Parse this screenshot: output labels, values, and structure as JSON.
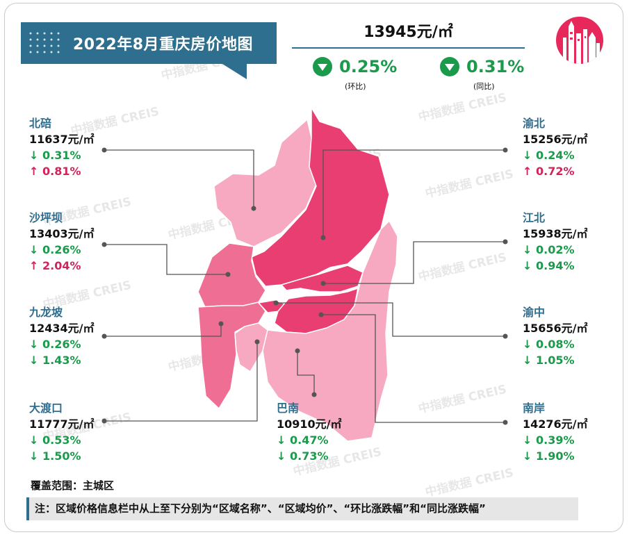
{
  "header": {
    "title": "2022年8月重庆房价地图",
    "avg_price": "13945元/㎡",
    "mom_value": "0.25%",
    "mom_label": "(环比)",
    "yoy_value": "0.31%",
    "yoy_label": "(同比)"
  },
  "chart_data": {
    "type": "table",
    "columns": [
      "区域名称",
      "区域均价",
      "环比涨跌幅",
      "同比涨跌幅"
    ],
    "rows": [
      {
        "name": "北碚",
        "price": "11637元/㎡",
        "mom": "↓ 0.31%",
        "yoy": "↑ 0.81%",
        "mom_dir": "down",
        "yoy_dir": "up",
        "price_value": 11637,
        "mom_value": -0.31,
        "yoy_value": 0.81
      },
      {
        "name": "渝北",
        "price": "15256元/㎡",
        "mom": "↓ 0.24%",
        "yoy": "↑ 0.72%",
        "mom_dir": "down",
        "yoy_dir": "up",
        "price_value": 15256,
        "mom_value": -0.24,
        "yoy_value": 0.72
      },
      {
        "name": "沙坪坝",
        "price": "13403元/㎡",
        "mom": "↓ 0.26%",
        "yoy": "↑ 2.04%",
        "mom_dir": "down",
        "yoy_dir": "up",
        "price_value": 13403,
        "mom_value": -0.26,
        "yoy_value": 2.04
      },
      {
        "name": "江北",
        "price": "15938元/㎡",
        "mom": "↓ 0.02%",
        "yoy": "↓ 0.94%",
        "mom_dir": "down",
        "yoy_dir": "down",
        "price_value": 15938,
        "mom_value": -0.02,
        "yoy_value": -0.94
      },
      {
        "name": "九龙坡",
        "price": "12434元/㎡",
        "mom": "↓ 0.26%",
        "yoy": "↓ 1.43%",
        "mom_dir": "down",
        "yoy_dir": "down",
        "price_value": 12434,
        "mom_value": -0.26,
        "yoy_value": -1.43
      },
      {
        "name": "渝中",
        "price": "15656元/㎡",
        "mom": "↓ 0.08%",
        "yoy": "↓ 1.05%",
        "mom_dir": "down",
        "yoy_dir": "down",
        "price_value": 15656,
        "mom_value": -0.08,
        "yoy_value": -1.05
      },
      {
        "name": "大渡口",
        "price": "11777元/㎡",
        "mom": "↓ 0.53%",
        "yoy": "↓ 1.50%",
        "mom_dir": "down",
        "yoy_dir": "down",
        "price_value": 11777,
        "mom_value": -0.53,
        "yoy_value": -1.5
      },
      {
        "name": "巴南",
        "price": "10910元/㎡",
        "mom": "↓ 0.47%",
        "yoy": "↓ 0.73%",
        "mom_dir": "down",
        "yoy_dir": "down",
        "price_value": 10910,
        "mom_value": -0.47,
        "yoy_value": -0.73
      },
      {
        "name": "南岸",
        "price": "14276元/㎡",
        "mom": "↓ 0.39%",
        "yoy": "↓ 1.90%",
        "mom_dir": "down",
        "yoy_dir": "down",
        "price_value": 14276,
        "mom_value": -0.39,
        "yoy_value": -1.9
      }
    ]
  },
  "footer": {
    "coverage": "覆盖范围：主城区",
    "note": "注：区域价格信息栏中从上至下分别为“区域名称”、“区域均价”、“环比涨跌幅”和“同比涨跌幅”"
  },
  "watermark": "中指数据 CREIS",
  "colors": {
    "brand": "#2e6e8e",
    "down": "#1a9a4a",
    "up": "#d0245a",
    "map_dark": "#e83e72",
    "map_mid": "#ee6f93",
    "map_light": "#f6a9c0"
  }
}
